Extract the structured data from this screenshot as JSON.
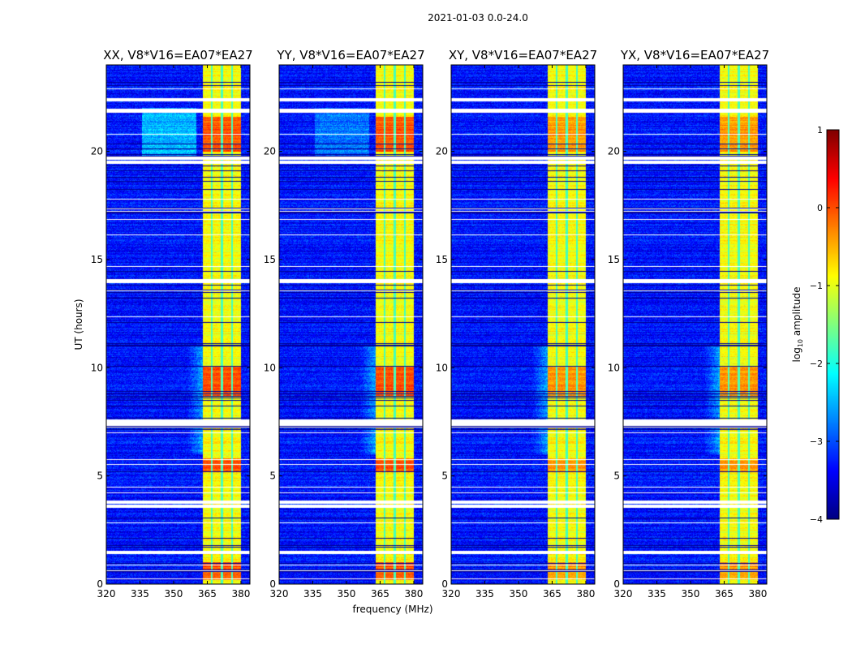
{
  "chart_data": {
    "type": "heatmap",
    "suptitle": "2021-01-03 0.0-24.0",
    "xlabel": "frequency (MHz)",
    "ylabel": "UT (hours)",
    "xlim": [
      320,
      384
    ],
    "ylim": [
      0,
      24
    ],
    "xticks": [
      "320",
      "335",
      "350",
      "365",
      "380"
    ],
    "xtick_values": [
      320,
      335,
      350,
      365,
      380
    ],
    "yticks": [
      "0",
      "5",
      "10",
      "15",
      "20"
    ],
    "ytick_values": [
      0,
      5,
      10,
      15,
      20
    ],
    "panels": [
      {
        "title": "XX, V8*V16=EA07*EA27",
        "show_ylabel": true
      },
      {
        "title": "YY, V8*V16=EA07*EA27",
        "show_ylabel": false
      },
      {
        "title": "XY, V8*V16=EA07*EA27",
        "show_ylabel": false
      },
      {
        "title": "YX, V8*V16=EA07*EA27",
        "show_ylabel": false
      }
    ],
    "colorbar": {
      "label": "log10 amplitude",
      "label_main": "log",
      "label_sub": "10",
      "label_rest": " amplitude",
      "range": [
        -4,
        1
      ],
      "ticks": [
        "1",
        "0",
        "−1",
        "−2",
        "−3",
        "−4"
      ],
      "tick_values": [
        1,
        0,
        -1,
        -2,
        -3,
        -4
      ],
      "colormap": "jet"
    },
    "features": {
      "background_log_amp": -3.3,
      "bright_band_mhz": [
        363,
        380
      ],
      "band_log_amp": -0.9,
      "band_dividers_mhz": [
        367,
        371.5,
        376
      ],
      "hot_hours": [
        [
          8.7,
          10.1
        ],
        [
          5.2,
          5.8
        ],
        [
          20.0,
          21.6
        ],
        [
          0.2,
          1.0
        ]
      ],
      "flagged_hours": [
        1.45,
        3.6,
        3.8,
        7.4,
        7.55,
        14.0,
        19.5,
        19.7,
        21.9,
        22.4
      ]
    }
  }
}
